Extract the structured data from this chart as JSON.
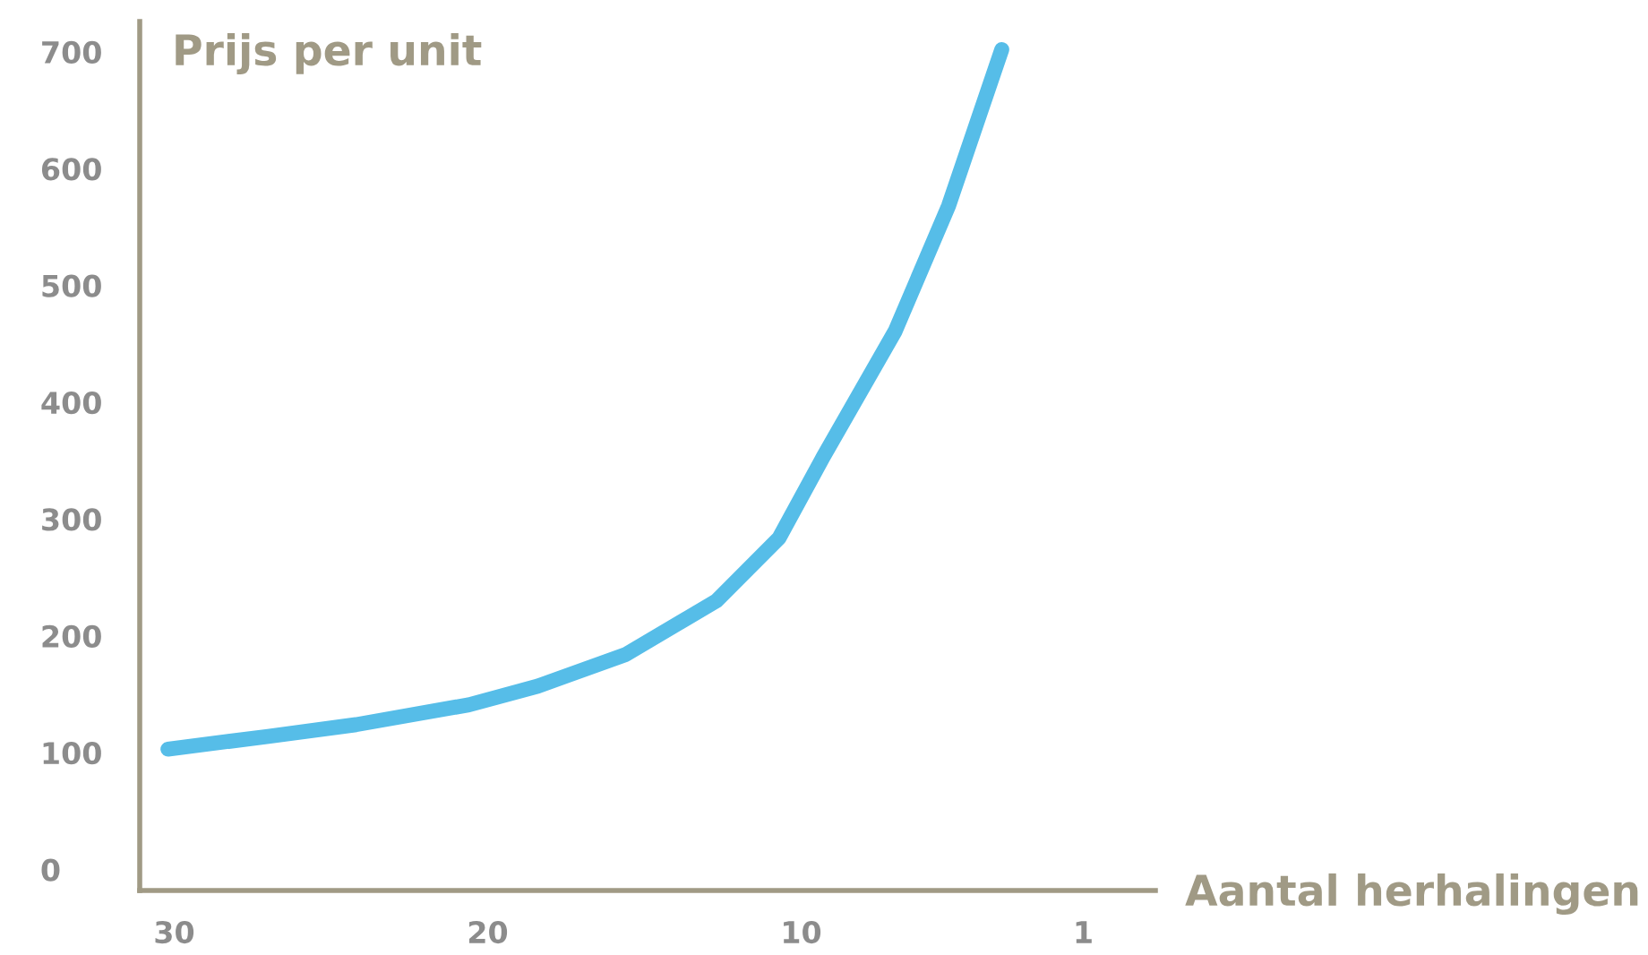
{
  "chart_data": {
    "type": "line",
    "ylabel": "Prijs per unit",
    "xlabel": "Aantal herhalingen",
    "x": [
      30.2,
      27.0,
      24.2,
      20.6,
      18.4,
      15.6,
      12.7,
      10.7,
      9.3,
      7.0,
      5.3,
      3.6
    ],
    "series": [
      {
        "color": "#56bde8",
        "values": [
          103,
          114,
          124,
          141,
          157,
          184,
          230,
          284,
          353,
          461,
          568,
          702
        ]
      }
    ],
    "xlim": [
      31.1,
      -1.3
    ],
    "xticks": [
      30,
      20,
      10,
      1
    ],
    "ylim": [
      -18,
      726
    ],
    "yticks": [
      0,
      100,
      200,
      300,
      400,
      500,
      600,
      700
    ],
    "grid": false,
    "legend": false,
    "marker": "none",
    "line_style": "solid"
  }
}
